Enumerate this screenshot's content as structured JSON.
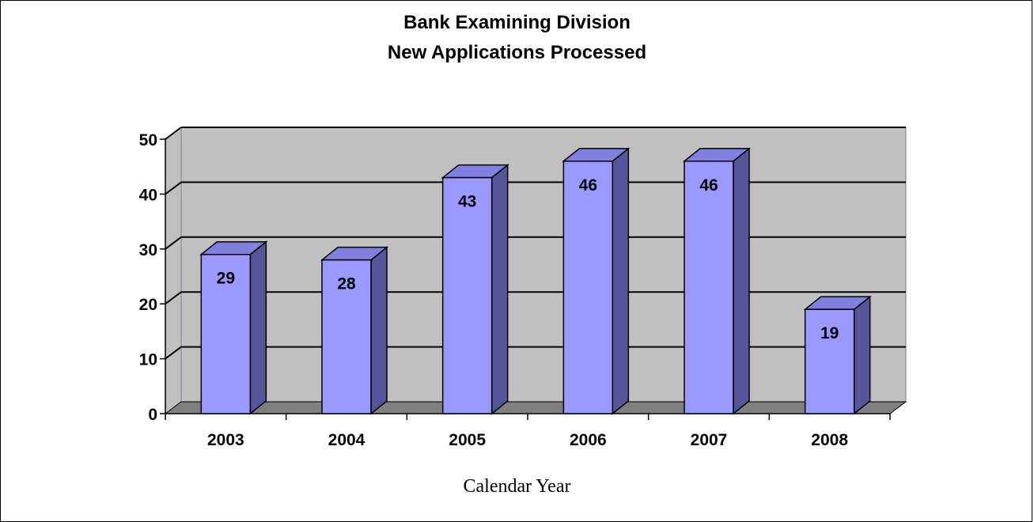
{
  "chart_data": {
    "type": "bar",
    "title": "Bank Examining Division",
    "subtitle": "New Applications Processed",
    "xlabel": "Calendar Year",
    "ylabel": "",
    "categories": [
      "2003",
      "2004",
      "2005",
      "2006",
      "2007",
      "2008"
    ],
    "values": [
      29,
      28,
      43,
      46,
      46,
      19
    ],
    "data_labels": [
      "29",
      "28",
      "43",
      "46",
      "46",
      "19"
    ],
    "yticks": [
      0,
      10,
      20,
      30,
      40,
      50
    ],
    "ylim": [
      0,
      50
    ],
    "grid": true,
    "legend": "none",
    "style": "3d-column",
    "colors": {
      "bar_front": "#9999ff",
      "bar_top": "#8080e0",
      "bar_side": "#555599",
      "plot_wall": "#c0c0c0",
      "plot_floor": "#808080"
    }
  }
}
